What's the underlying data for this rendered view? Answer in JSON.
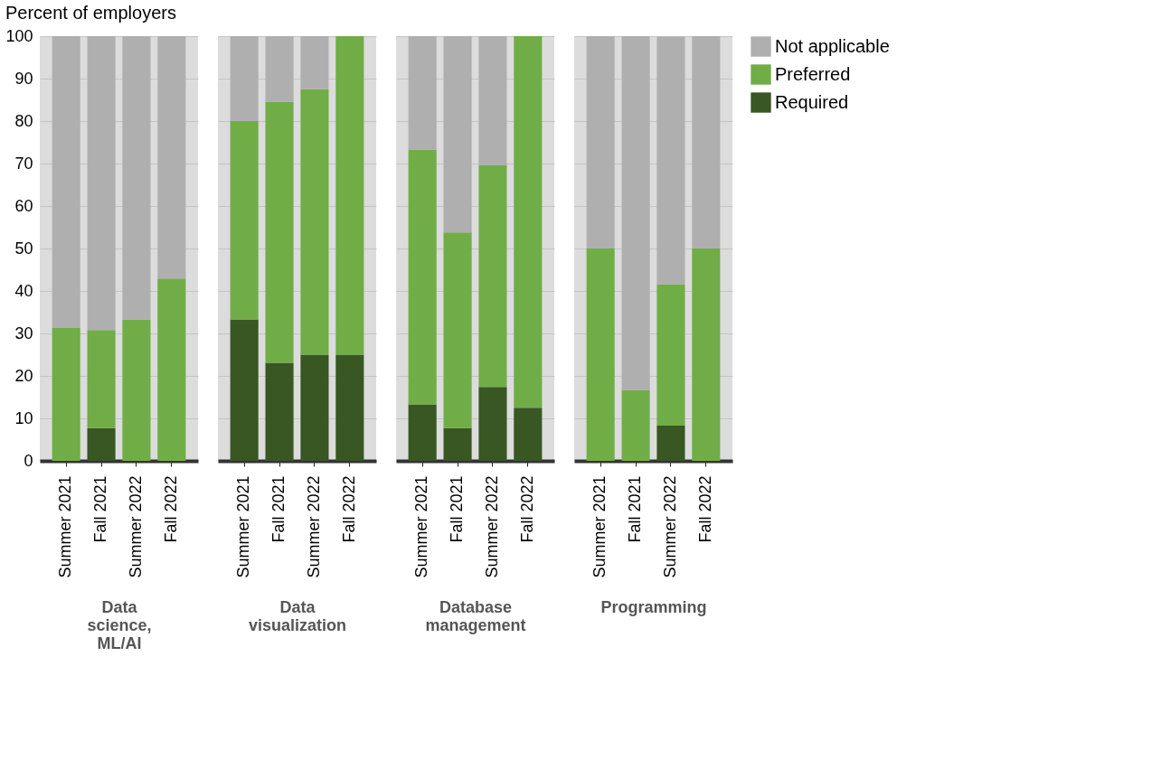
{
  "chart_data": [
    {
      "type": "bar",
      "title": "Percent of employers",
      "xlabel": "Data science, ML/AI",
      "stacked": true,
      "legend": "top right",
      "categories": [
        "Summer 2021",
        "Fall 2021",
        "Summer 2022",
        "Fall 2022"
      ],
      "ylim": [
        0,
        100
      ],
      "yticks": [
        0,
        10,
        20,
        30,
        40,
        50,
        60,
        70,
        80,
        90,
        100
      ],
      "grid": "y",
      "series": [
        {
          "name": "Required",
          "color": "#385723",
          "values": [
            0,
            7.7,
            0,
            0
          ]
        },
        {
          "name": "Preferred",
          "color": "#70ad47",
          "values": [
            31.3,
            23.1,
            33.3,
            42.9
          ]
        },
        {
          "name": "Not applicable",
          "color": "#afafaf",
          "values": [
            68.7,
            69.2,
            66.7,
            57.1
          ]
        }
      ]
    },
    {
      "type": "bar",
      "xlabel": "Data visualization",
      "stacked": true,
      "legend": "top right",
      "tick_labels": "x",
      "categories": [
        "Summer 2021",
        "Fall 2021",
        "Summer 2022",
        "Fall 2022"
      ],
      "ylim": [
        0,
        100
      ],
      "yticks": [
        0,
        10,
        20,
        30,
        40,
        50,
        60,
        70,
        80,
        90,
        100
      ],
      "grid": "y",
      "series": [
        {
          "name": "Required",
          "color": "#385723",
          "values": [
            33.3,
            23.1,
            25,
            25
          ]
        },
        {
          "name": "Preferred",
          "color": "#70ad47",
          "values": [
            46.7,
            61.5,
            62.5,
            75
          ]
        },
        {
          "name": "Not applicable",
          "color": "#afafaf",
          "values": [
            20,
            15.4,
            12.5,
            0
          ]
        }
      ]
    },
    {
      "type": "bar",
      "xlabel": "Database management",
      "stacked": true,
      "legend": "top right",
      "tick_labels": "x",
      "categories": [
        "Summer 2021",
        "Fall 2021",
        "Summer 2022",
        "Fall 2022"
      ],
      "ylim": [
        0,
        100
      ],
      "yticks": [
        0,
        10,
        20,
        30,
        40,
        50,
        60,
        70,
        80,
        90,
        100
      ],
      "grid": "y",
      "series": [
        {
          "name": "Required",
          "color": "#385723",
          "values": [
            13.3,
            7.7,
            17.4,
            12.5
          ]
        },
        {
          "name": "Preferred",
          "color": "#70ad47",
          "values": [
            60,
            46.1,
            52.2,
            87.5
          ]
        },
        {
          "name": "Not applicable",
          "color": "#afafaf",
          "values": [
            26.7,
            46.2,
            30.4,
            0
          ]
        }
      ]
    },
    {
      "type": "bar",
      "xlabel": "Programming",
      "stacked": true,
      "tick_labels": "x",
      "legend": "top right",
      "categories": [
        "Summer 2021",
        "Fall 2021",
        "Summer 2022",
        "Fall 2022"
      ],
      "ylim": [
        0,
        100
      ],
      "yticks": [
        0,
        10,
        20,
        30,
        40,
        50,
        60,
        70,
        80,
        90,
        100
      ],
      "grid": "y",
      "series": [
        {
          "name": "Required",
          "color": "#385723",
          "values": [
            0,
            0,
            8.3,
            0
          ]
        },
        {
          "name": "Preferred",
          "color": "#70ad47",
          "values": [
            50,
            16.7,
            33.3,
            50
          ]
        },
        {
          "name": "Not applicable",
          "color": "#afafaf",
          "values": [
            50,
            83.3,
            58.3,
            50
          ]
        }
      ]
    }
  ]
}
